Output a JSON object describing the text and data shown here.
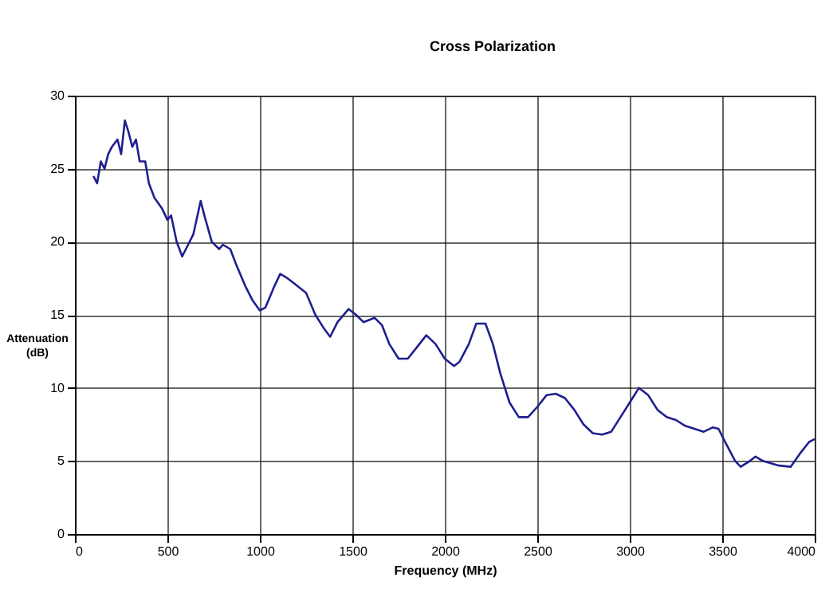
{
  "chart_data": {
    "type": "line",
    "title": "Cross Polarization",
    "xlabel": "Frequency (MHz)",
    "ylabel": "Attenuation (dB)",
    "xlim": [
      0,
      4000
    ],
    "xticks": [
      0,
      500,
      1000,
      1500,
      2000,
      2500,
      3000,
      3500,
      4000
    ],
    "ylim": [
      0,
      30
    ],
    "yticks": [
      0,
      5,
      10,
      15,
      20,
      25,
      30
    ],
    "grid": true,
    "x": [
      100,
      120,
      140,
      160,
      180,
      200,
      230,
      250,
      270,
      290,
      310,
      330,
      350,
      380,
      400,
      430,
      470,
      500,
      520,
      550,
      580,
      600,
      640,
      680,
      700,
      740,
      780,
      800,
      840,
      870,
      920,
      960,
      1000,
      1030,
      1080,
      1110,
      1150,
      1200,
      1250,
      1300,
      1350,
      1380,
      1420,
      1480,
      1520,
      1560,
      1620,
      1660,
      1700,
      1750,
      1800,
      1850,
      1900,
      1950,
      2000,
      2050,
      2080,
      2130,
      2170,
      2220,
      2260,
      2300,
      2350,
      2400,
      2450,
      2500,
      2550,
      2600,
      2650,
      2700,
      2750,
      2800,
      2850,
      2900,
      2950,
      3000,
      3050,
      3100,
      3150,
      3200,
      3250,
      3300,
      3350,
      3400,
      3450,
      3480,
      3520,
      3570,
      3600,
      3650,
      3680,
      3720,
      3800,
      3870,
      3920,
      3970,
      4000
    ],
    "series": [
      {
        "color": "#1f1f8f",
        "values": [
          24.5,
          24.0,
          25.5,
          25.0,
          26.0,
          26.5,
          27.0,
          26.0,
          28.3,
          27.5,
          26.5,
          27.0,
          25.5,
          25.5,
          24.0,
          23.0,
          22.3,
          21.5,
          21.8,
          20.0,
          19.0,
          19.5,
          20.5,
          22.8,
          21.8,
          20.0,
          19.5,
          19.8,
          19.5,
          18.5,
          17.0,
          16.0,
          15.3,
          15.5,
          17.0,
          17.8,
          17.5,
          17.0,
          16.5,
          15.0,
          14.0,
          13.5,
          14.5,
          15.4,
          15.0,
          14.5,
          14.8,
          14.3,
          13.0,
          12.0,
          12.0,
          12.8,
          13.6,
          13.0,
          12.0,
          11.5,
          11.8,
          13.0,
          14.4,
          14.4,
          13.0,
          11.0,
          9.0,
          8.0,
          8.0,
          8.7,
          9.5,
          9.6,
          9.3,
          8.5,
          7.5,
          6.9,
          6.8,
          7.0,
          8.0,
          9.0,
          10.0,
          9.5,
          8.5,
          8.0,
          7.8,
          7.4,
          7.2,
          7.0,
          7.3,
          7.2,
          6.2,
          5.0,
          4.6,
          5.0,
          5.3,
          5.0,
          4.7,
          4.6,
          5.5,
          6.3,
          6.5
        ]
      }
    ]
  }
}
